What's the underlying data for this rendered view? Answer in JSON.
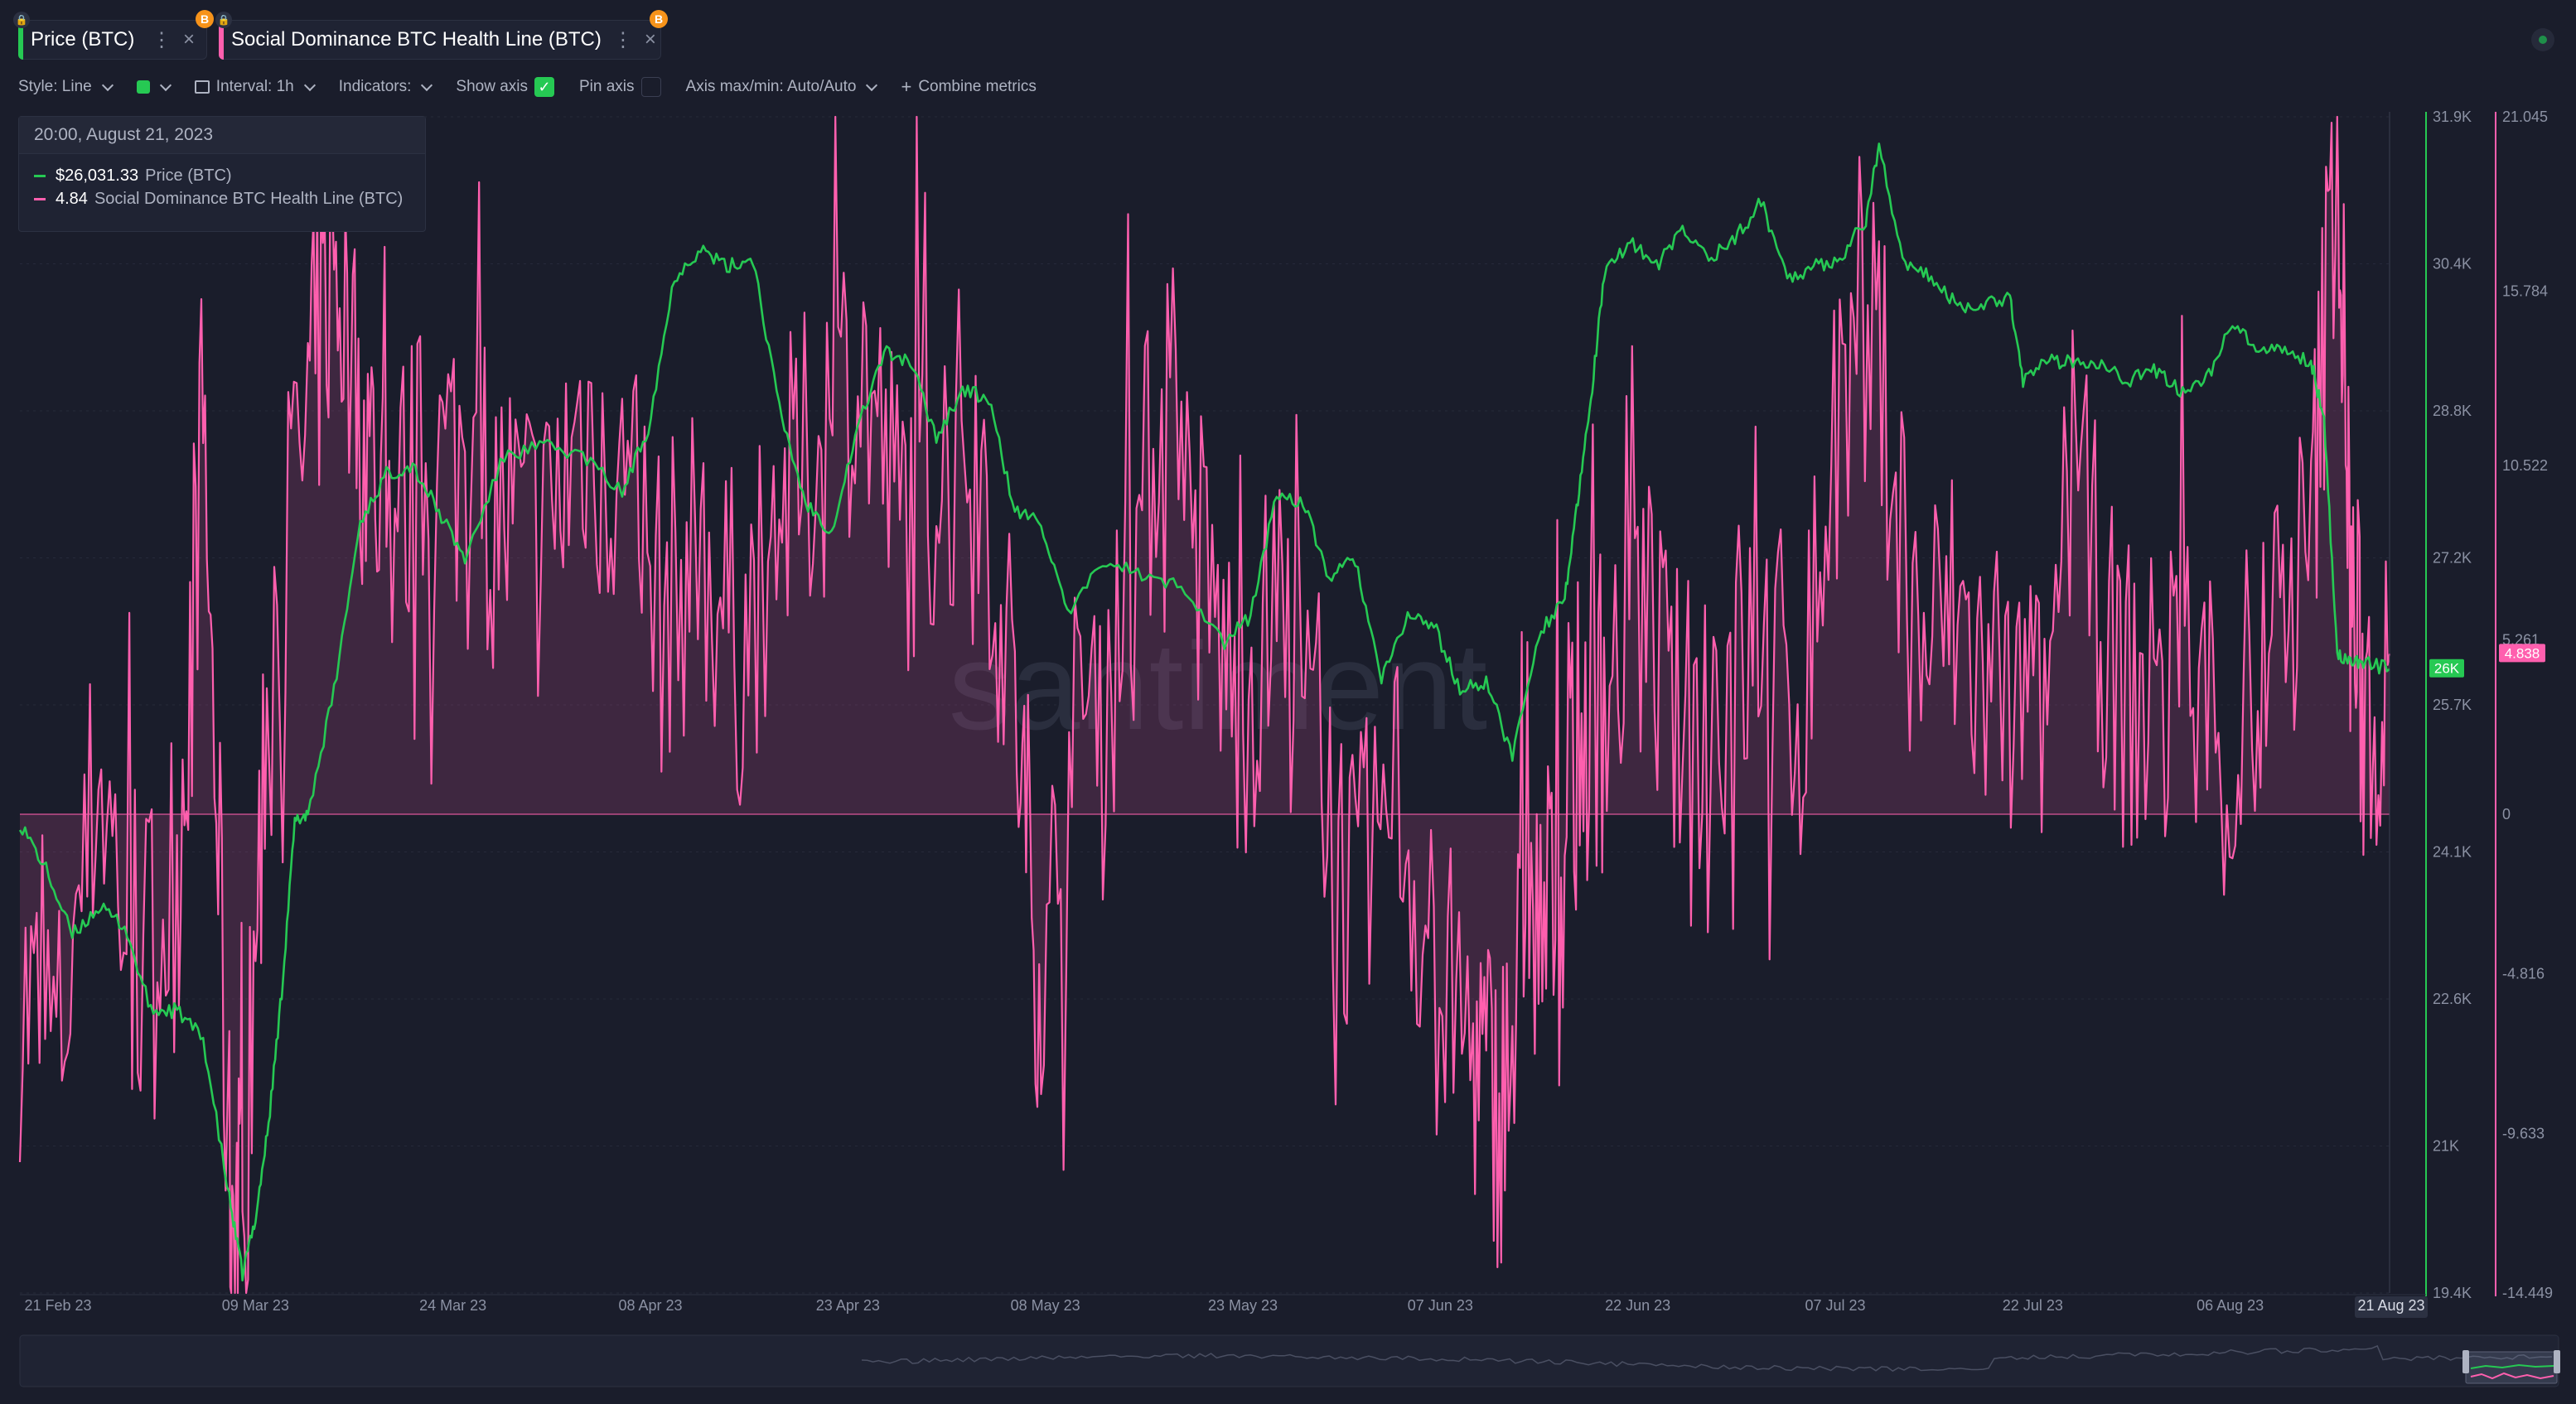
{
  "tabs": [
    {
      "label": "Price (BTC)",
      "color": "#26c953",
      "menu_icon": "more-vertical-icon",
      "close_icon": "close-icon",
      "badge": "B"
    },
    {
      "label": "Social Dominance BTC Health Line (BTC)",
      "color": "#ff5fae",
      "menu_icon": "more-vertical-icon",
      "close_icon": "close-icon",
      "badge": "B"
    }
  ],
  "toolbar": {
    "style_label": "Style: Line",
    "interval_label": "Interval: 1h",
    "indicators_label": "Indicators:",
    "show_axis_label": "Show axis",
    "show_axis_checked": true,
    "pin_axis_label": "Pin axis",
    "pin_axis_checked": false,
    "axis_maxmin_label": "Axis max/min: Auto/Auto",
    "combine_label": "Combine metrics",
    "combine_icon": "plus-icon"
  },
  "tooltip": {
    "date": "20:00, August 21, 2023",
    "rows": [
      {
        "value": "$26,031.33",
        "name": "Price (BTC)",
        "color": "#26c953"
      },
      {
        "value": "4.84",
        "name": "Social Dominance BTC Health Line (BTC)",
        "color": "#ff5fae"
      }
    ]
  },
  "watermark": "santiment",
  "chart_data": {
    "type": "line",
    "x_tick_labels": [
      "21 Feb 23",
      "09 Mar 23",
      "24 Mar 23",
      "08 Apr 23",
      "23 Apr 23",
      "08 May 23",
      "23 May 23",
      "07 Jun 23",
      "22 Jun 23",
      "07 Jul 23",
      "22 Jul 23",
      "06 Aug 23",
      "21 Aug 23"
    ],
    "xlim": [
      "2023-02-21",
      "2023-08-21"
    ],
    "series": [
      {
        "name": "Price (BTC)",
        "color": "#26c953",
        "axis": "left",
        "ylim": [
          19400,
          31900
        ],
        "y_ticks": [
          "31.9K",
          "30.4K",
          "28.8K",
          "27.2K",
          "25.7K",
          "24.1K",
          "22.6K",
          "21K",
          "19.4K"
        ],
        "current_value_label": "26K",
        "points": [
          [
            "2023-02-21",
            24400
          ],
          [
            "2023-02-23",
            23900
          ],
          [
            "2023-02-25",
            23200
          ],
          [
            "2023-02-27",
            23500
          ],
          [
            "2023-03-01",
            23300
          ],
          [
            "2023-03-03",
            22400
          ],
          [
            "2023-03-05",
            22400
          ],
          [
            "2023-03-07",
            22100
          ],
          [
            "2023-03-09",
            20400
          ],
          [
            "2023-03-10",
            19600
          ],
          [
            "2023-03-11",
            20200
          ],
          [
            "2023-03-12",
            21200
          ],
          [
            "2023-03-13",
            22600
          ],
          [
            "2023-03-14",
            24400
          ],
          [
            "2023-03-15",
            24500
          ],
          [
            "2023-03-17",
            25800
          ],
          [
            "2023-03-19",
            27600
          ],
          [
            "2023-03-21",
            28100
          ],
          [
            "2023-03-23",
            28200
          ],
          [
            "2023-03-25",
            27700
          ],
          [
            "2023-03-27",
            27200
          ],
          [
            "2023-03-30",
            28300
          ],
          [
            "2023-04-02",
            28400
          ],
          [
            "2023-04-05",
            28300
          ],
          [
            "2023-04-08",
            27900
          ],
          [
            "2023-04-10",
            28600
          ],
          [
            "2023-04-12",
            30200
          ],
          [
            "2023-04-14",
            30500
          ],
          [
            "2023-04-16",
            30300
          ],
          [
            "2023-04-18",
            30400
          ],
          [
            "2023-04-20",
            28800
          ],
          [
            "2023-04-22",
            27800
          ],
          [
            "2023-04-24",
            27500
          ],
          [
            "2023-04-26",
            28600
          ],
          [
            "2023-04-28",
            29400
          ],
          [
            "2023-04-30",
            29300
          ],
          [
            "2023-05-02",
            28500
          ],
          [
            "2023-05-04",
            29000
          ],
          [
            "2023-05-06",
            28900
          ],
          [
            "2023-05-08",
            27700
          ],
          [
            "2023-05-10",
            27600
          ],
          [
            "2023-05-12",
            26600
          ],
          [
            "2023-05-15",
            27200
          ],
          [
            "2023-05-18",
            27000
          ],
          [
            "2023-05-21",
            26900
          ],
          [
            "2023-05-24",
            26300
          ],
          [
            "2023-05-26",
            26600
          ],
          [
            "2023-05-28",
            27900
          ],
          [
            "2023-05-30",
            27800
          ],
          [
            "2023-06-01",
            27000
          ],
          [
            "2023-06-03",
            27200
          ],
          [
            "2023-06-05",
            25900
          ],
          [
            "2023-06-07",
            26600
          ],
          [
            "2023-06-09",
            26500
          ],
          [
            "2023-06-11",
            25800
          ],
          [
            "2023-06-13",
            25900
          ],
          [
            "2023-06-15",
            25100
          ],
          [
            "2023-06-17",
            26400
          ],
          [
            "2023-06-19",
            26800
          ],
          [
            "2023-06-20",
            27800
          ],
          [
            "2023-06-21",
            28900
          ],
          [
            "2023-06-22",
            30200
          ],
          [
            "2023-06-24",
            30600
          ],
          [
            "2023-06-26",
            30300
          ],
          [
            "2023-06-28",
            30700
          ],
          [
            "2023-06-30",
            30400
          ],
          [
            "2023-07-02",
            30600
          ],
          [
            "2023-07-04",
            31000
          ],
          [
            "2023-07-06",
            30200
          ],
          [
            "2023-07-08",
            30300
          ],
          [
            "2023-07-10",
            30400
          ],
          [
            "2023-07-12",
            30800
          ],
          [
            "2023-07-13",
            31600
          ],
          [
            "2023-07-15",
            30300
          ],
          [
            "2023-07-17",
            30200
          ],
          [
            "2023-07-19",
            29900
          ],
          [
            "2023-07-21",
            29900
          ],
          [
            "2023-07-23",
            30000
          ],
          [
            "2023-07-24",
            29100
          ],
          [
            "2023-07-26",
            29300
          ],
          [
            "2023-07-28",
            29300
          ],
          [
            "2023-07-30",
            29300
          ],
          [
            "2023-08-01",
            29100
          ],
          [
            "2023-08-03",
            29200
          ],
          [
            "2023-08-05",
            29000
          ],
          [
            "2023-08-07",
            29100
          ],
          [
            "2023-08-09",
            29700
          ],
          [
            "2023-08-11",
            29400
          ],
          [
            "2023-08-13",
            29400
          ],
          [
            "2023-08-15",
            29300
          ],
          [
            "2023-08-16",
            28700
          ],
          [
            "2023-08-17",
            26200
          ],
          [
            "2023-08-18",
            26100
          ],
          [
            "2023-08-19",
            26100
          ],
          [
            "2023-08-21",
            26031
          ]
        ]
      },
      {
        "name": "Social Dominance BTC Health Line (BTC)",
        "color": "#ff5fae",
        "axis": "right",
        "ylim": [
          -14.449,
          21.045
        ],
        "y_ticks": [
          "21.045",
          "15.784",
          "10.522",
          "5.261",
          "0",
          "-4.816",
          "-9.633",
          "-14.449"
        ],
        "current_value_label": "4.838",
        "points": [
          [
            "2023-02-21",
            -5.5
          ],
          [
            "2023-02-24",
            -7
          ],
          [
            "2023-02-27",
            1.5
          ],
          [
            "2023-03-02",
            -5
          ],
          [
            "2023-03-05",
            -2
          ],
          [
            "2023-03-07",
            12
          ],
          [
            "2023-03-09",
            -11
          ],
          [
            "2023-03-10",
            -13
          ],
          [
            "2023-03-12",
            5
          ],
          [
            "2023-03-15",
            12
          ],
          [
            "2023-03-17",
            17
          ],
          [
            "2023-03-19",
            12
          ],
          [
            "2023-03-21",
            9
          ],
          [
            "2023-03-24",
            10
          ],
          [
            "2023-03-27",
            11
          ],
          [
            "2023-03-30",
            9
          ],
          [
            "2023-04-02",
            8
          ],
          [
            "2023-04-05",
            12
          ],
          [
            "2023-04-08",
            10
          ],
          [
            "2023-04-11",
            6
          ],
          [
            "2023-04-14",
            8
          ],
          [
            "2023-04-17",
            5
          ],
          [
            "2023-04-20",
            9
          ],
          [
            "2023-04-23",
            11
          ],
          [
            "2023-04-26",
            14
          ],
          [
            "2023-04-29",
            9
          ],
          [
            "2023-05-02",
            10
          ],
          [
            "2023-05-05",
            12
          ],
          [
            "2023-05-08",
            3
          ],
          [
            "2023-05-10",
            -5
          ],
          [
            "2023-05-13",
            3
          ],
          [
            "2023-05-16",
            5
          ],
          [
            "2023-05-19",
            12
          ],
          [
            "2023-05-22",
            8
          ],
          [
            "2023-05-25",
            3
          ],
          [
            "2023-05-28",
            6
          ],
          [
            "2023-05-31",
            2
          ],
          [
            "2023-06-03",
            -3
          ],
          [
            "2023-06-06",
            1
          ],
          [
            "2023-06-09",
            -5
          ],
          [
            "2023-06-12",
            -7
          ],
          [
            "2023-06-14",
            -9
          ],
          [
            "2023-06-16",
            -4
          ],
          [
            "2023-06-18",
            -3
          ],
          [
            "2023-06-20",
            2
          ],
          [
            "2023-06-22",
            4
          ],
          [
            "2023-06-25",
            6
          ],
          [
            "2023-06-28",
            2
          ],
          [
            "2023-07-01",
            4
          ],
          [
            "2023-07-04",
            5
          ],
          [
            "2023-07-07",
            3
          ],
          [
            "2023-07-10",
            12
          ],
          [
            "2023-07-13",
            14
          ],
          [
            "2023-07-16",
            5
          ],
          [
            "2023-07-19",
            6
          ],
          [
            "2023-07-22",
            3
          ],
          [
            "2023-07-25",
            2
          ],
          [
            "2023-07-28",
            10
          ],
          [
            "2023-07-31",
            4
          ],
          [
            "2023-08-03",
            3
          ],
          [
            "2023-08-06",
            5
          ],
          [
            "2023-08-09",
            1
          ],
          [
            "2023-08-12",
            5
          ],
          [
            "2023-08-15",
            8
          ],
          [
            "2023-08-17",
            21
          ],
          [
            "2023-08-18",
            7
          ],
          [
            "2023-08-19",
            3
          ],
          [
            "2023-08-21",
            4.84
          ]
        ]
      }
    ],
    "grid": true,
    "legend": "top-left"
  }
}
